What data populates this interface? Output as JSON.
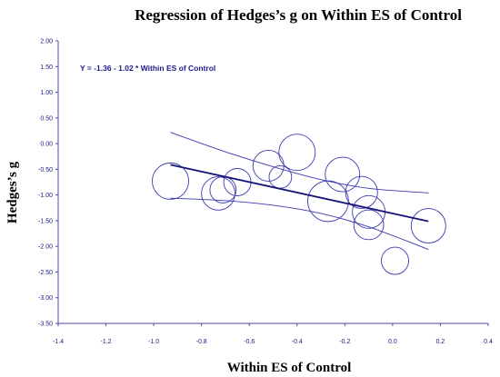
{
  "colors": {
    "axis": "#4a4ab0",
    "series": "#3b3bb0",
    "fit_line": "#141478",
    "text": "#000000"
  },
  "chart_data": {
    "type": "scatter",
    "title": "Regression of Hedges’s g on Within ES of Control",
    "xlabel": "Within ES of Control",
    "ylabel": "Hedges’s g",
    "xlim": [
      -1.4,
      0.4
    ],
    "ylim": [
      -3.5,
      2.0
    ],
    "x_ticks": [
      "-1.4",
      "-1.2",
      "-1.0",
      "-0.8",
      "-0.6",
      "-0.4",
      "-0.2",
      "0.0",
      "0.2",
      "0.4"
    ],
    "y_ticks": [
      "2.00",
      "1.50",
      "1.00",
      "0.50",
      "0.00",
      "-0.50",
      "-1.00",
      "-1.50",
      "-2.00",
      "-2.50",
      "-3.00",
      "-3.50"
    ],
    "grid": false,
    "equation": "Y = -1.36 - 1.02 * Within ES of Control",
    "regression": {
      "intercept": -1.36,
      "slope": -1.02,
      "x_range": [
        -0.93,
        0.15
      ]
    },
    "confidence_band": {
      "upper": [
        [
          -0.93,
          0.22
        ],
        [
          -0.7,
          -0.16
        ],
        [
          -0.5,
          -0.45
        ],
        [
          -0.3,
          -0.7
        ],
        [
          -0.1,
          -0.87
        ],
        [
          0.15,
          -0.96
        ]
      ],
      "lower": [
        [
          -0.93,
          -1.06
        ],
        [
          -0.7,
          -1.11
        ],
        [
          -0.5,
          -1.2
        ],
        [
          -0.3,
          -1.36
        ],
        [
          -0.1,
          -1.62
        ],
        [
          0.15,
          -2.06
        ]
      ]
    },
    "points": [
      {
        "x": -0.93,
        "y": -0.73,
        "weight": 1.0
      },
      {
        "x": -0.73,
        "y": -0.97,
        "weight": 0.92
      },
      {
        "x": -0.71,
        "y": -0.9,
        "weight": 0.72
      },
      {
        "x": -0.65,
        "y": -0.75,
        "weight": 0.75
      },
      {
        "x": -0.52,
        "y": -0.43,
        "weight": 0.85
      },
      {
        "x": -0.47,
        "y": -0.65,
        "weight": 0.62
      },
      {
        "x": -0.4,
        "y": -0.17,
        "weight": 1.0
      },
      {
        "x": -0.27,
        "y": -1.12,
        "weight": 1.12
      },
      {
        "x": -0.21,
        "y": -0.6,
        "weight": 0.95
      },
      {
        "x": -0.13,
        "y": -0.95,
        "weight": 0.88
      },
      {
        "x": -0.1,
        "y": -1.33,
        "weight": 0.9
      },
      {
        "x": -0.1,
        "y": -1.58,
        "weight": 0.82
      },
      {
        "x": 0.01,
        "y": -2.28,
        "weight": 0.75
      },
      {
        "x": 0.15,
        "y": -1.6,
        "weight": 0.95
      }
    ]
  }
}
